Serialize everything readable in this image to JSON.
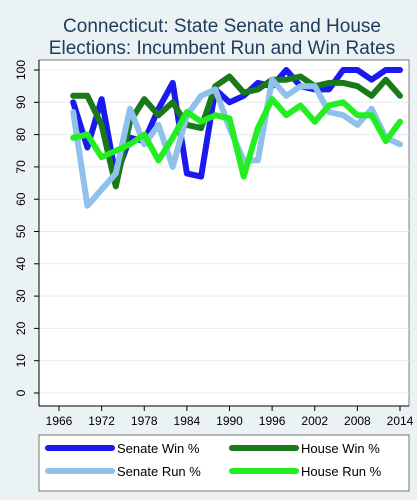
{
  "chart_data": {
    "type": "line",
    "title": "Connecticut: State Senate and House Elections: Incumbent Run and Win Rates",
    "title_lines": [
      "Connecticut: State Senate and House",
      "Elections: Incumbent Run and Win Rates"
    ],
    "xlabel": "",
    "ylabel": "",
    "xlim": [
      1966,
      2014
    ],
    "ylim": [
      0,
      100
    ],
    "x_ticks": [
      1966,
      1972,
      1978,
      1984,
      1990,
      1996,
      2002,
      2008,
      2014
    ],
    "y_ticks": [
      0,
      10,
      20,
      30,
      40,
      50,
      60,
      70,
      80,
      90,
      100
    ],
    "grid": true,
    "legend_position": "bottom",
    "x": [
      1968,
      1970,
      1972,
      1974,
      1976,
      1978,
      1980,
      1982,
      1984,
      1986,
      1988,
      1990,
      1992,
      1994,
      1996,
      1998,
      2000,
      2002,
      2004,
      2006,
      2008,
      2010,
      2012,
      2014
    ],
    "series": [
      {
        "name": "Senate Win %",
        "color": "#1a1aef",
        "values": [
          90,
          76,
          91,
          67,
          79,
          78,
          88,
          96,
          68,
          67,
          94,
          90,
          92,
          96,
          95,
          100,
          95,
          94,
          94,
          100,
          100,
          97,
          100,
          100
        ]
      },
      {
        "name": "House Win %",
        "color": "#1a7a1a",
        "values": [
          92,
          92,
          83,
          64,
          84,
          91,
          86,
          90,
          83,
          82,
          95,
          98,
          93,
          94,
          97,
          97,
          98,
          95,
          96,
          96,
          95,
          92,
          97,
          92
        ]
      },
      {
        "name": "Senate Run %",
        "color": "#8fc1ea",
        "values": [
          87,
          58,
          63,
          68,
          88,
          77,
          83,
          70,
          86,
          92,
          94,
          82,
          72,
          72,
          97,
          92,
          95,
          95,
          87,
          86,
          83,
          88,
          79,
          77
        ]
      },
      {
        "name": "House Run %",
        "color": "#22ee22",
        "values": [
          79,
          80,
          73,
          75,
          77,
          80,
          72,
          79,
          87,
          84,
          86,
          85,
          67,
          82,
          91,
          86,
          89,
          84,
          89,
          90,
          86,
          86,
          78,
          84
        ]
      }
    ]
  }
}
